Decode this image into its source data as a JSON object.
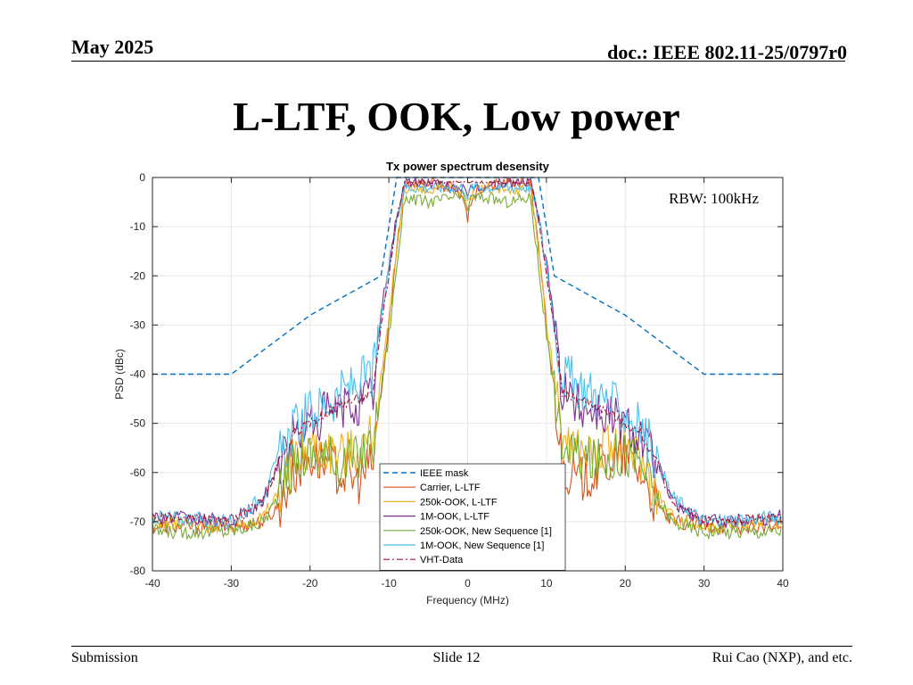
{
  "header": {
    "date": "May 2025",
    "doc": "doc.: IEEE 802.11-25/0797r0"
  },
  "slide_title": "L-LTF, OOK, Low power",
  "footer": {
    "left": "Submission",
    "center": "Slide 12",
    "right": "Rui Cao (NXP), and etc."
  },
  "chart_data": {
    "type": "line",
    "title": "Tx power spectrum desensity",
    "xlabel": "Frequency (MHz)",
    "ylabel": "PSD (dBc)",
    "xlim": [
      -40,
      40
    ],
    "ylim": [
      -80,
      0
    ],
    "xticks": [
      -40,
      -30,
      -20,
      -10,
      0,
      10,
      20,
      30,
      40
    ],
    "yticks": [
      0,
      -10,
      -20,
      -30,
      -40,
      -50,
      -60,
      -70,
      -80
    ],
    "grid": true,
    "legend_position": "bottom-center",
    "annotation": "RBW: 100kHz",
    "series": [
      {
        "name": "IEEE mask",
        "color": "#0072BD",
        "style": "dashed",
        "x": [
          -40,
          -30,
          -20,
          -11,
          -9,
          9,
          11,
          20,
          30,
          40
        ],
        "y": [
          -40,
          -40,
          -28,
          -20,
          0,
          0,
          -20,
          -28,
          -40,
          -40
        ]
      },
      {
        "name": "Carrier, L-LTF",
        "color": "#D95319",
        "style": "solid",
        "x": [
          -40,
          -30,
          -26,
          -24,
          -22,
          -20,
          -18,
          -16,
          -14,
          -12,
          -10,
          -9,
          -8,
          -5,
          -2,
          -0.5,
          0,
          0.5,
          2,
          5,
          8,
          9,
          10,
          12,
          14,
          16,
          18,
          20,
          22,
          24,
          26,
          30,
          40
        ],
        "y": [
          -71,
          -71,
          -70,
          -67,
          -60,
          -57,
          -58,
          -60,
          -62,
          -58,
          -30,
          -15,
          -1,
          -1,
          -2,
          -4,
          -9,
          -4,
          -2,
          -1,
          -1,
          -15,
          -30,
          -58,
          -62,
          -60,
          -58,
          -57,
          -60,
          -67,
          -70,
          -71,
          -71
        ]
      },
      {
        "name": "250k-OOK, L-LTF",
        "color": "#EDB120",
        "style": "solid",
        "x": [
          -40,
          -30,
          -26,
          -24,
          -22,
          -20,
          -18,
          -16,
          -14,
          -12,
          -10,
          -9,
          -8,
          -5,
          -2,
          -0.5,
          0,
          0.5,
          2,
          5,
          8,
          9,
          10,
          12,
          14,
          16,
          18,
          20,
          22,
          24,
          26,
          30,
          40
        ],
        "y": [
          -70,
          -71,
          -69,
          -64,
          -57,
          -54,
          -55,
          -56,
          -55,
          -52,
          -30,
          -14,
          -2,
          -3,
          -2,
          -3,
          -5,
          -3,
          -2,
          -3,
          -2,
          -14,
          -30,
          -52,
          -55,
          -56,
          -55,
          -54,
          -57,
          -64,
          -69,
          -71,
          -70
        ]
      },
      {
        "name": "1M-OOK, L-LTF",
        "color": "#7E2F8E",
        "style": "solid",
        "x": [
          -40,
          -30,
          -26,
          -24,
          -22,
          -20,
          -18,
          -16,
          -14,
          -12,
          -11,
          -10,
          -9,
          -8,
          -5,
          -2,
          -0.5,
          0,
          0.5,
          2,
          5,
          8,
          9,
          10,
          11,
          12,
          14,
          16,
          18,
          20,
          22,
          24,
          26,
          30,
          40
        ],
        "y": [
          -69,
          -70,
          -66,
          -58,
          -52,
          -50,
          -48,
          -47,
          -46,
          -44,
          -28,
          -18,
          -8,
          -1,
          -1,
          -2,
          -2,
          -5,
          -2,
          -2,
          -1,
          -1,
          -8,
          -18,
          -28,
          -44,
          -46,
          -47,
          -48,
          -50,
          -52,
          -58,
          -66,
          -70,
          -69
        ]
      },
      {
        "name": "250k-OOK, New Sequence [1]",
        "color": "#77AC30",
        "style": "solid",
        "x": [
          -40,
          -30,
          -26,
          -24,
          -22,
          -20,
          -18,
          -16,
          -14,
          -12,
          -10,
          -9,
          -8,
          -5,
          -2,
          -0.5,
          0,
          0.5,
          2,
          5,
          8,
          9,
          10,
          12,
          14,
          16,
          18,
          20,
          22,
          24,
          26,
          30,
          40
        ],
        "y": [
          -72,
          -72,
          -70,
          -65,
          -58,
          -56,
          -57,
          -58,
          -57,
          -54,
          -32,
          -18,
          -4,
          -5,
          -4,
          -4,
          -6,
          -4,
          -4,
          -5,
          -4,
          -18,
          -32,
          -54,
          -57,
          -58,
          -57,
          -56,
          -58,
          -65,
          -70,
          -72,
          -72
        ]
      },
      {
        "name": "1M-OOK, New Sequence [1]",
        "color": "#4DBEEE",
        "style": "solid",
        "x": [
          -40,
          -30,
          -26,
          -24,
          -22,
          -20,
          -18,
          -16,
          -14,
          -12,
          -11,
          -10,
          -9,
          -8,
          -5,
          -2,
          -0.5,
          0,
          0.5,
          2,
          5,
          8,
          9,
          10,
          11,
          12,
          14,
          16,
          18,
          20,
          22,
          24,
          26,
          30,
          40
        ],
        "y": [
          -69,
          -70,
          -65,
          -57,
          -51,
          -48,
          -46,
          -44,
          -42,
          -40,
          -30,
          -18,
          -8,
          -2,
          -2,
          -2,
          -2,
          -4,
          -2,
          -2,
          -2,
          -2,
          -8,
          -18,
          -30,
          -40,
          -42,
          -44,
          -46,
          -48,
          -51,
          -57,
          -65,
          -70,
          -69
        ]
      },
      {
        "name": "VHT-Data",
        "color": "#A2142F",
        "style": "dashdot",
        "x": [
          -40,
          -30,
          -26,
          -24,
          -22,
          -20,
          -18,
          -16,
          -14,
          -12,
          -11,
          -10,
          -9,
          -8,
          -5,
          -2,
          -0.5,
          0,
          0.5,
          2,
          5,
          8,
          9,
          10,
          11,
          12,
          14,
          16,
          18,
          20,
          22,
          24,
          26,
          30,
          40
        ],
        "y": [
          -69,
          -70,
          -66,
          -58,
          -52,
          -50,
          -48,
          -46,
          -45,
          -44,
          -30,
          -20,
          -8,
          -1,
          -1,
          -1,
          -1,
          -1,
          -1,
          -1,
          -1,
          -1,
          -8,
          -20,
          -30,
          -44,
          -45,
          -46,
          -48,
          -50,
          -52,
          -58,
          -66,
          -70,
          -69
        ]
      }
    ]
  }
}
